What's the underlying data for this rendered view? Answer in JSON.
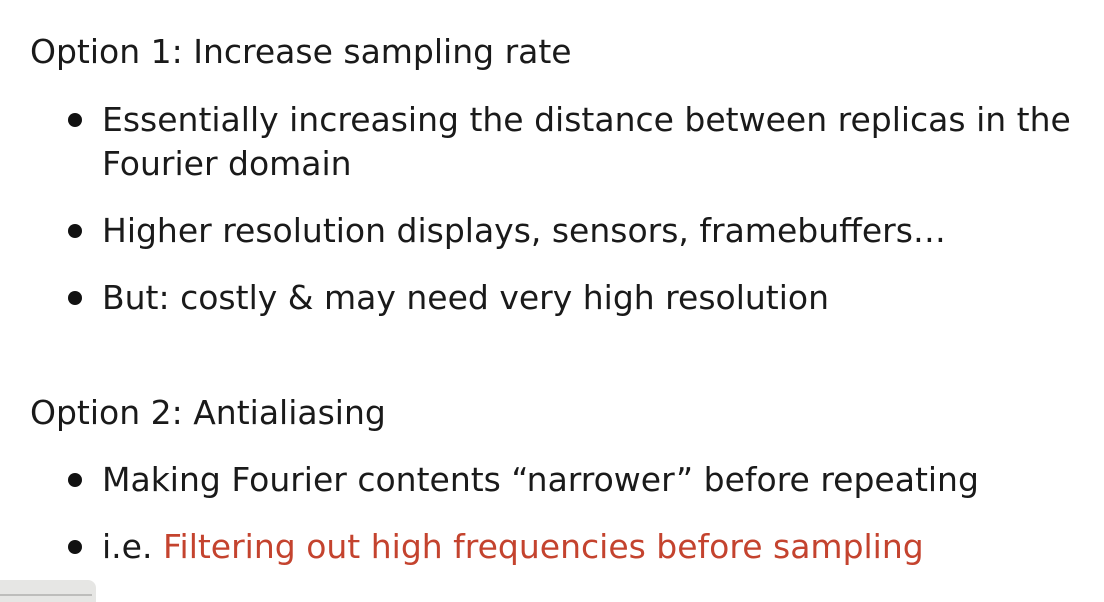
{
  "sections": [
    {
      "heading": "Option 1: Increase sampling rate",
      "bullets": [
        {
          "text": "Essentially increasing the distance between replicas in the Fourier domain"
        },
        {
          "text": "Higher resolution displays, sensors, framebuffers…"
        },
        {
          "text": "But: costly & may need very high resolution"
        }
      ]
    },
    {
      "heading": "Option 2: Antialiasing",
      "bullets": [
        {
          "text": "Making Fourier contents “narrower” before repeating"
        },
        {
          "prefix": "i.e. ",
          "highlight": "Filtering out high frequencies before sampling"
        }
      ]
    }
  ],
  "colors": {
    "accent": "#c4432e",
    "text": "#1a1a1a"
  }
}
